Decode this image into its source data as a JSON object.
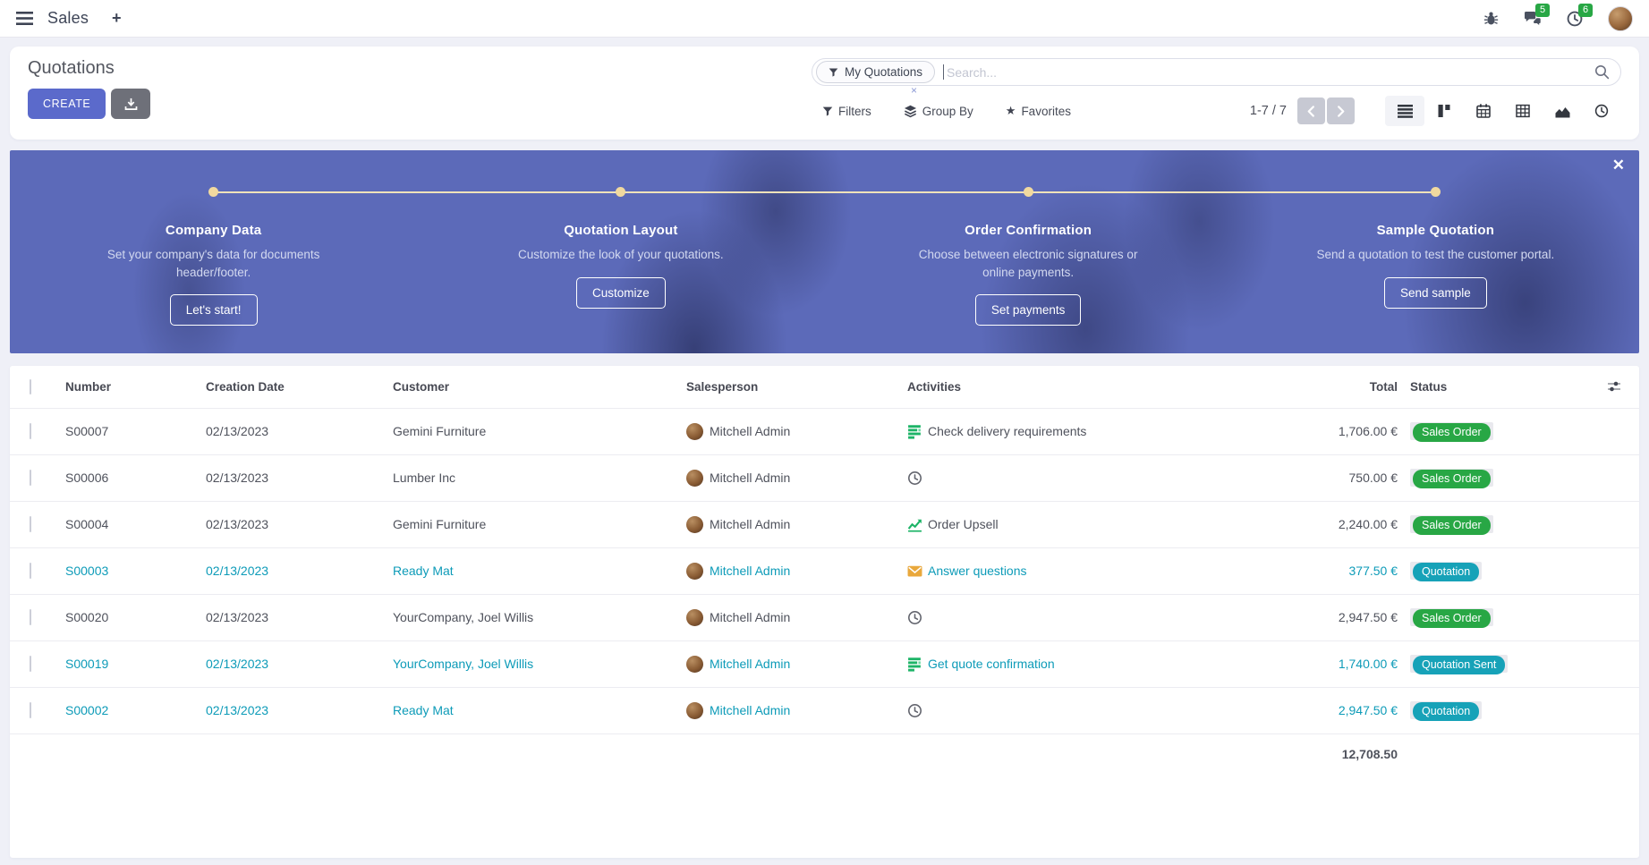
{
  "navbar": {
    "app_name": "Sales",
    "plus": "+",
    "messages_badge": "5",
    "activities_badge": "6"
  },
  "control_panel": {
    "title": "Quotations",
    "create_label": "CREATE",
    "search": {
      "facet": "My Quotations",
      "placeholder": "Search..."
    },
    "filters_label": "Filters",
    "group_by_label": "Group By",
    "favorites_label": "Favorites",
    "pager": "1-7 / 7"
  },
  "icons": {
    "close": "✕",
    "facet_remove": "×",
    "star": "★"
  },
  "banner": {
    "steps": [
      {
        "title": "Company Data",
        "desc": "Set your company's data for documents header/footer.",
        "button": "Let's start!"
      },
      {
        "title": "Quotation Layout",
        "desc": "Customize the look of your quotations.",
        "button": "Customize"
      },
      {
        "title": "Order Confirmation",
        "desc": "Choose between electronic signatures or online payments.",
        "button": "Set payments"
      },
      {
        "title": "Sample Quotation",
        "desc": "Send a quotation to test the customer portal.",
        "button": "Send sample"
      }
    ]
  },
  "table": {
    "headers": {
      "number": "Number",
      "date": "Creation Date",
      "customer": "Customer",
      "salesperson": "Salesperson",
      "activities": "Activities",
      "total": "Total",
      "status": "Status"
    },
    "rows": [
      {
        "number": "S00007",
        "date": "02/13/2023",
        "customer": "Gemini Furniture",
        "salesperson": "Mitchell Admin",
        "activity_icon": "list",
        "activity": "Check delivery requirements",
        "total": "1,706.00 €",
        "status": "Sales Order",
        "status_color": "green",
        "highlighted": false
      },
      {
        "number": "S00006",
        "date": "02/13/2023",
        "customer": "Lumber Inc",
        "salesperson": "Mitchell Admin",
        "activity_icon": "clock",
        "activity": "",
        "total": "750.00 €",
        "status": "Sales Order",
        "status_color": "green",
        "highlighted": false
      },
      {
        "number": "S00004",
        "date": "02/13/2023",
        "customer": "Gemini Furniture",
        "salesperson": "Mitchell Admin",
        "activity_icon": "chart",
        "activity": "Order Upsell",
        "total": "2,240.00 €",
        "status": "Sales Order",
        "status_color": "green",
        "highlighted": false
      },
      {
        "number": "S00003",
        "date": "02/13/2023",
        "customer": "Ready Mat",
        "salesperson": "Mitchell Admin",
        "activity_icon": "envelope",
        "activity": "Answer questions",
        "total": "377.50 €",
        "status": "Quotation",
        "status_color": "teal",
        "highlighted": true
      },
      {
        "number": "S00020",
        "date": "02/13/2023",
        "customer": "YourCompany, Joel Willis",
        "salesperson": "Mitchell Admin",
        "activity_icon": "clock",
        "activity": "",
        "total": "2,947.50 €",
        "status": "Sales Order",
        "status_color": "green",
        "highlighted": false
      },
      {
        "number": "S00019",
        "date": "02/13/2023",
        "customer": "YourCompany, Joel Willis",
        "salesperson": "Mitchell Admin",
        "activity_icon": "list",
        "activity": "Get quote confirmation",
        "total": "1,740.00 €",
        "status": "Quotation Sent",
        "status_color": "teal",
        "highlighted": true
      },
      {
        "number": "S00002",
        "date": "02/13/2023",
        "customer": "Ready Mat",
        "salesperson": "Mitchell Admin",
        "activity_icon": "clock",
        "activity": "",
        "total": "2,947.50 €",
        "status": "Quotation",
        "status_color": "teal",
        "highlighted": true
      }
    ],
    "footer_total": "12,708.50"
  },
  "colors": {
    "accent": "#5b6acb",
    "badge_green": "#28a745",
    "badge_teal": "#17a2b8",
    "link_teal": "#0d9bb8"
  }
}
